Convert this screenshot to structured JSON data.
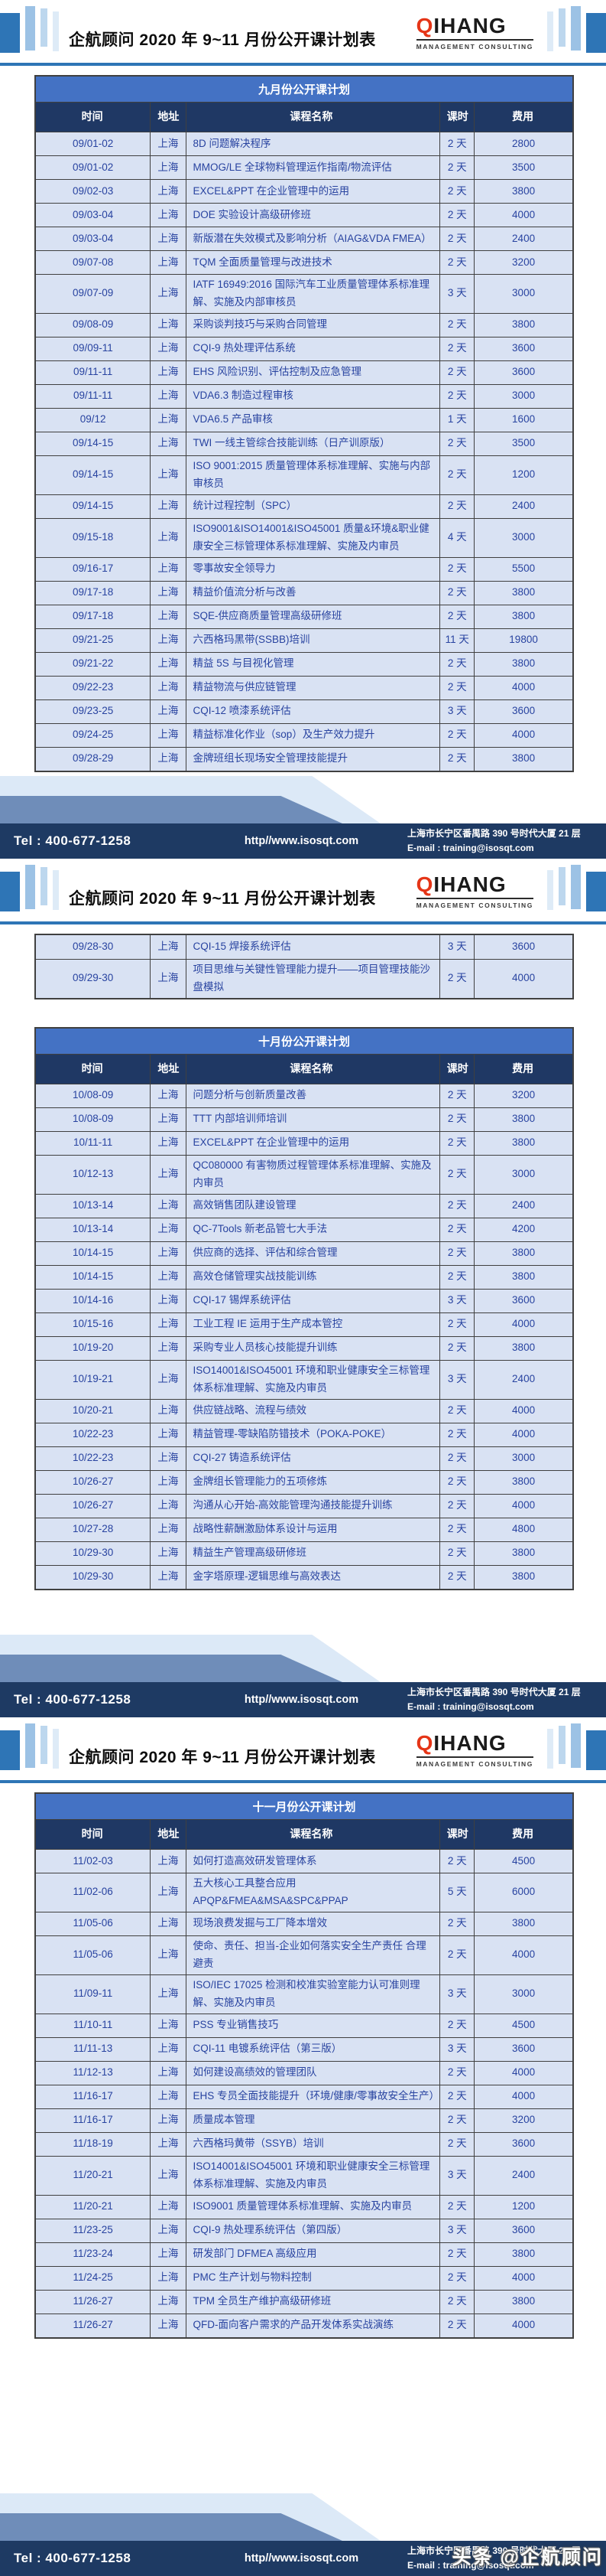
{
  "header": {
    "title": "企航顾问 2020 年 9~11 月份公开课计划表",
    "logo": {
      "first": "Q",
      "rest": "IHANG",
      "subtitle": "MANAGEMENT CONSULTING"
    }
  },
  "columns": [
    "时间",
    "地址",
    "课程名称",
    "课时",
    "费用"
  ],
  "footer": {
    "tel": "Tel : 400-677-1258",
    "url": "http//www.isosqt.com",
    "address": "上海市长宁区番禺路 390 号时代大厦 21 层",
    "email": "E-mail : training@isosqt.com"
  },
  "watermark": "头条 @企航顾问",
  "pages": [
    {
      "blocks": [
        {
          "title": "九月份公开课计划",
          "rows": [
            [
              "09/01-02",
              "上海",
              "8D 问题解决程序",
              "2 天",
              "2800"
            ],
            [
              "09/01-02",
              "上海",
              "MMOG/LE 全球物料管理运作指南/物流评估",
              "2 天",
              "3500"
            ],
            [
              "09/02-03",
              "上海",
              "EXCEL&PPT 在企业管理中的运用",
              "2 天",
              "3800"
            ],
            [
              "09/03-04",
              "上海",
              "DOE 实验设计高级研修班",
              "2 天",
              "4000"
            ],
            [
              "09/03-04",
              "上海",
              "新版潜在失效模式及影响分析（AIAG&VDA FMEA）",
              "2 天",
              "2400"
            ],
            [
              "09/07-08",
              "上海",
              "TQM 全面质量管理与改进技术",
              "2 天",
              "3200"
            ],
            [
              "09/07-09",
              "上海",
              "IATF 16949:2016 国际汽车工业质量管理体系标准理解、实施及内部审核员",
              "3 天",
              "3000"
            ],
            [
              "09/08-09",
              "上海",
              "采购谈判技巧与采购合同管理",
              "2 天",
              "3800"
            ],
            [
              "09/09-11",
              "上海",
              "CQI-9 热处理评估系统",
              "2 天",
              "3600"
            ],
            [
              "09/11-11",
              "上海",
              "EHS 风险识别、评估控制及应急管理",
              "2 天",
              "3600"
            ],
            [
              "09/11-11",
              "上海",
              "VDA6.3 制造过程审核",
              "2 天",
              "3000"
            ],
            [
              "09/12",
              "上海",
              "VDA6.5 产品审核",
              "1 天",
              "1600"
            ],
            [
              "09/14-15",
              "上海",
              "TWI 一线主管综合技能训练（日产训原版）",
              "2 天",
              "3500"
            ],
            [
              "09/14-15",
              "上海",
              "ISO 9001:2015 质量管理体系标准理解、实施与内部审核员",
              "2 天",
              "1200"
            ],
            [
              "09/14-15",
              "上海",
              "统计过程控制（SPC）",
              "2 天",
              "2400"
            ],
            [
              "09/15-18",
              "上海",
              "ISO9001&ISO14001&ISO45001 质量&环境&职业健康安全三标管理体系标准理解、实施及内审员",
              "4 天",
              "3000"
            ],
            [
              "09/16-17",
              "上海",
              "零事故安全领导力",
              "2 天",
              "5500"
            ],
            [
              "09/17-18",
              "上海",
              "精益价值流分析与改善",
              "2 天",
              "3800"
            ],
            [
              "09/17-18",
              "上海",
              "SQE-供应商质量管理高级研修班",
              "2 天",
              "3800"
            ],
            [
              "09/21-25",
              "上海",
              "六西格玛黑带(SSBB)培训",
              "11 天",
              "19800"
            ],
            [
              "09/21-22",
              "上海",
              "精益 5S 与目视化管理",
              "2 天",
              "3800"
            ],
            [
              "09/22-23",
              "上海",
              "精益物流与供应链管理",
              "2 天",
              "4000"
            ],
            [
              "09/23-25",
              "上海",
              "CQI-12 喷漆系统评估",
              "3 天",
              "3600"
            ],
            [
              "09/24-25",
              "上海",
              "精益标准化作业（sop）及生产效力提升",
              "2 天",
              "4000"
            ],
            [
              "09/28-29",
              "上海",
              "金牌班组长现场安全管理技能提升",
              "2 天",
              "3800"
            ]
          ]
        }
      ]
    },
    {
      "blocks": [
        {
          "title": null,
          "rows": [
            [
              "09/28-30",
              "上海",
              "CQI-15 焊接系统评估",
              "3 天",
              "3600"
            ],
            [
              "09/29-30",
              "上海",
              "项目思维与关键性管理能力提升——项目管理技能沙盘模拟",
              "2 天",
              "4000"
            ]
          ]
        },
        {
          "title": "十月份公开课计划",
          "rows": [
            [
              "10/08-09",
              "上海",
              "问题分析与创新质量改善",
              "2 天",
              "3200"
            ],
            [
              "10/08-09",
              "上海",
              "TTT 内部培训师培训",
              "2 天",
              "3800"
            ],
            [
              "10/11-11",
              "上海",
              "EXCEL&PPT 在企业管理中的运用",
              "2 天",
              "3800"
            ],
            [
              "10/12-13",
              "上海",
              "QC080000 有害物质过程管理体系标准理解、实施及内审员",
              "2 天",
              "3000"
            ],
            [
              "10/13-14",
              "上海",
              "高效销售团队建设管理",
              "2 天",
              "2400"
            ],
            [
              "10/13-14",
              "上海",
              "QC-7Tools 新老品管七大手法",
              "2 天",
              "4200"
            ],
            [
              "10/14-15",
              "上海",
              "供应商的选择、评估和综合管理",
              "2 天",
              "3800"
            ],
            [
              "10/14-15",
              "上海",
              "高效仓储管理实战技能训练",
              "2 天",
              "3800"
            ],
            [
              "10/14-16",
              "上海",
              "CQI-17 锡焊系统评估",
              "3 天",
              "3600"
            ],
            [
              "10/15-16",
              "上海",
              "工业工程 IE 运用于生产成本管控",
              "2 天",
              "4000"
            ],
            [
              "10/19-20",
              "上海",
              "采购专业人员核心技能提升训练",
              "2 天",
              "3800"
            ],
            [
              "10/19-21",
              "上海",
              "ISO14001&ISO45001 环境和职业健康安全三标管理体系标准理解、实施及内审员",
              "3 天",
              "2400"
            ],
            [
              "10/20-21",
              "上海",
              "供应链战略、流程与绩效",
              "2 天",
              "4000"
            ],
            [
              "10/22-23",
              "上海",
              "精益管理-零缺陷防错技术（POKA-POKE）",
              "2 天",
              "4000"
            ],
            [
              "10/22-23",
              "上海",
              "CQI-27 铸造系统评估",
              "2 天",
              "3000"
            ],
            [
              "10/26-27",
              "上海",
              "金牌组长管理能力的五项修炼",
              "2 天",
              "3800"
            ],
            [
              "10/26-27",
              "上海",
              "沟通从心开始-高效能管理沟通技能提升训练",
              "2 天",
              "4000"
            ],
            [
              "10/27-28",
              "上海",
              "战略性薪酬激励体系设计与运用",
              "2 天",
              "4800"
            ],
            [
              "10/29-30",
              "上海",
              "精益生产管理高级研修班",
              "2 天",
              "3800"
            ],
            [
              "10/29-30",
              "上海",
              "金字塔原理-逻辑思维与高效表达",
              "2 天",
              "3800"
            ]
          ]
        }
      ]
    },
    {
      "blocks": [
        {
          "title": "十一月份公开课计划",
          "rows": [
            [
              "11/02-03",
              "上海",
              "如何打造高效研发管理体系",
              "2 天",
              "4500"
            ],
            [
              "11/02-06",
              "上海",
              "五大核心工具整合应用 APQP&FMEA&MSA&SPC&PPAP",
              "5 天",
              "6000"
            ],
            [
              "11/05-06",
              "上海",
              "现场浪费发掘与工厂降本增效",
              "2 天",
              "3800"
            ],
            [
              "11/05-06",
              "上海",
              "使命、责任、担当-企业如何落实安全生产责任 合理避责",
              "2 天",
              "4000"
            ],
            [
              "11/09-11",
              "上海",
              "ISO/IEC 17025 检测和校准实验室能力认可准则理解、实施及内审员",
              "3 天",
              "3000"
            ],
            [
              "11/10-11",
              "上海",
              "PSS 专业销售技巧",
              "2 天",
              "4500"
            ],
            [
              "11/11-13",
              "上海",
              "CQI-11 电镀系统评估（第三版）",
              "3 天",
              "3600"
            ],
            [
              "11/12-13",
              "上海",
              "如何建设高绩效的管理团队",
              "2 天",
              "4000"
            ],
            [
              "11/16-17",
              "上海",
              "EHS 专员全面技能提升（环境/健康/零事故安全生产）",
              "2 天",
              "4000"
            ],
            [
              "11/16-17",
              "上海",
              "质量成本管理",
              "2 天",
              "3200"
            ],
            [
              "11/18-19",
              "上海",
              "六西格玛黄带（SSYB）培训",
              "2 天",
              "3600"
            ],
            [
              "11/20-21",
              "上海",
              "ISO14001&ISO45001 环境和职业健康安全三标管理体系标准理解、实施及内审员",
              "3 天",
              "2400"
            ],
            [
              "11/20-21",
              "上海",
              "ISO9001 质量管理体系标准理解、实施及内审员",
              "2 天",
              "1200"
            ],
            [
              "11/23-25",
              "上海",
              "CQI-9 热处理系统评估（第四版）",
              "3 天",
              "3600"
            ],
            [
              "11/23-24",
              "上海",
              "研发部门 DFMEA 高级应用",
              "2 天",
              "3800"
            ],
            [
              "11/24-25",
              "上海",
              "PMC 生产计划与物料控制",
              "2 天",
              "4000"
            ],
            [
              "11/26-27",
              "上海",
              "TPM 全员生产维护高级研修班",
              "2 天",
              "3800"
            ],
            [
              "11/26-27",
              "上海",
              "QFD-面向客户需求的产品开发体系实战演练",
              "2 天",
              "4000"
            ]
          ]
        }
      ]
    }
  ]
}
